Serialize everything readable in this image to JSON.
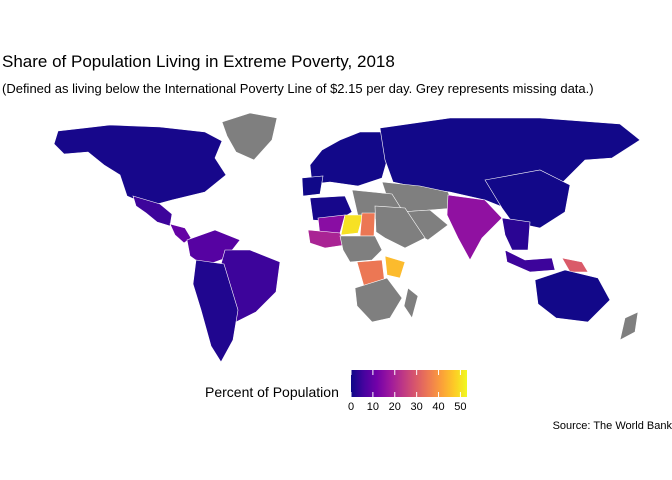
{
  "header": {
    "title": "Share of Population Living in Extreme Poverty, 2018",
    "subtitle": "(Defined as living below the International Poverty Line of $2.15 per day. Grey represents missing data.)"
  },
  "legend": {
    "title": "Percent of Population",
    "min": 0,
    "max": 53,
    "ticks": [
      "0",
      "10",
      "20",
      "30",
      "40",
      "50"
    ],
    "tick_values": [
      0,
      10,
      20,
      30,
      40,
      50
    ],
    "palette": [
      "#0d0887",
      "#46039f",
      "#7201a8",
      "#9c179e",
      "#bd3786",
      "#d8576b",
      "#ed7953",
      "#fb9f3a",
      "#fdca26",
      "#f0f921"
    ]
  },
  "footer": {
    "source": "Source: The World Bank"
  },
  "colors": {
    "missing": "#7f7f7f",
    "border": "#ffffff"
  },
  "map_data": {
    "type": "choropleth",
    "metric": "share_extreme_poverty_percent",
    "regions": [
      {
        "name": "North America",
        "value": 1
      },
      {
        "name": "Greenland",
        "value": null
      },
      {
        "name": "Mexico",
        "value": 5
      },
      {
        "name": "Central America",
        "value": 10
      },
      {
        "name": "Colombia / Venezuela",
        "value": 8
      },
      {
        "name": "Brazil",
        "value": 5
      },
      {
        "name": "South America South",
        "value": 2
      },
      {
        "name": "Europe",
        "value": 0.5
      },
      {
        "name": "Iberia",
        "value": 0.3
      },
      {
        "name": "Russia / Central Asia",
        "value": 0.5
      },
      {
        "name": "Middle East",
        "value": null
      },
      {
        "name": "Arabia",
        "value": null
      },
      {
        "name": "South Asia",
        "value": 16
      },
      {
        "name": "China",
        "value": 0.5
      },
      {
        "name": "Southeast Asia",
        "value": 3
      },
      {
        "name": "Indonesia",
        "value": 5
      },
      {
        "name": "Papua New Guinea",
        "value": 30
      },
      {
        "name": "Australia",
        "value": 0.5
      },
      {
        "name": "New Zealand",
        "value": null
      },
      {
        "name": "North Africa West",
        "value": 1
      },
      {
        "name": "North Africa East",
        "value": null
      },
      {
        "name": "Mali",
        "value": 15
      },
      {
        "name": "Niger",
        "value": 50
      },
      {
        "name": "Chad",
        "value": 35
      },
      {
        "name": "West Africa Coast",
        "value": 20
      },
      {
        "name": "Sudan / Ethiopia",
        "value": null
      },
      {
        "name": "Central Africa",
        "value": null
      },
      {
        "name": "DR Congo",
        "value": 35
      },
      {
        "name": "Tanzania",
        "value": 45
      },
      {
        "name": "Southern Africa",
        "value": null
      },
      {
        "name": "Madagascar",
        "value": null
      }
    ]
  }
}
